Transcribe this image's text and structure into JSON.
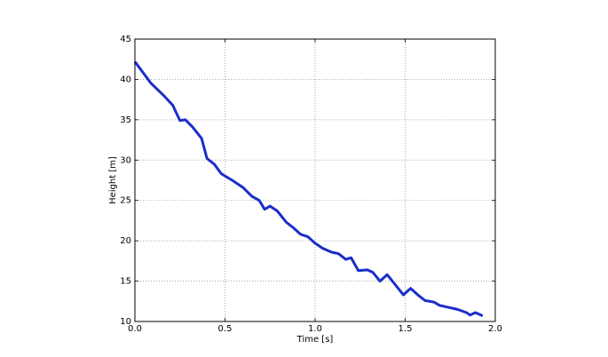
{
  "chart_data": {
    "type": "line",
    "xlabel": "Time [s]",
    "ylabel": "Height [m]",
    "x": [
      0,
      0.09,
      0.16,
      0.21,
      0.25,
      0.28,
      0.32,
      0.37,
      0.4,
      0.44,
      0.48,
      0.54,
      0.6,
      0.65,
      0.69,
      0.72,
      0.75,
      0.79,
      0.84,
      0.88,
      0.92,
      0.96,
      1.0,
      1.04,
      1.09,
      1.13,
      1.17,
      1.2,
      1.24,
      1.29,
      1.32,
      1.36,
      1.4,
      1.44,
      1.49,
      1.53,
      1.57,
      1.61,
      1.66,
      1.69,
      1.75,
      1.79,
      1.84,
      1.86,
      1.89,
      1.93
    ],
    "series": [
      {
        "color": "#1a2ec8",
        "values": [
          42.2,
          39.5,
          38.0,
          36.8,
          34.9,
          35.0,
          34.1,
          32.7,
          30.2,
          29.5,
          28.3,
          27.5,
          26.6,
          25.5,
          25.0,
          23.9,
          24.3,
          23.7,
          22.3,
          21.6,
          20.8,
          20.5,
          19.7,
          19.1,
          18.6,
          18.4,
          17.7,
          17.9,
          16.3,
          16.4,
          16.1,
          15.0,
          15.8,
          14.7,
          13.3,
          14.1,
          13.3,
          12.6,
          12.4,
          12.0,
          11.7,
          11.5,
          11.1,
          10.8,
          11.1,
          10.7
        ]
      }
    ],
    "xlim": [
      0,
      2
    ],
    "xticks": [
      {
        "value": 0,
        "label": "0.0"
      },
      {
        "value": 0.5,
        "label": "0.5"
      },
      {
        "value": 1,
        "label": "1.0"
      },
      {
        "value": 1.5,
        "label": "1.5"
      },
      {
        "value": 2,
        "label": "2.0"
      }
    ],
    "ylim": [
      10,
      45
    ],
    "yticks": [
      10,
      15,
      20,
      25,
      30,
      35,
      40,
      45
    ],
    "grid": true
  }
}
